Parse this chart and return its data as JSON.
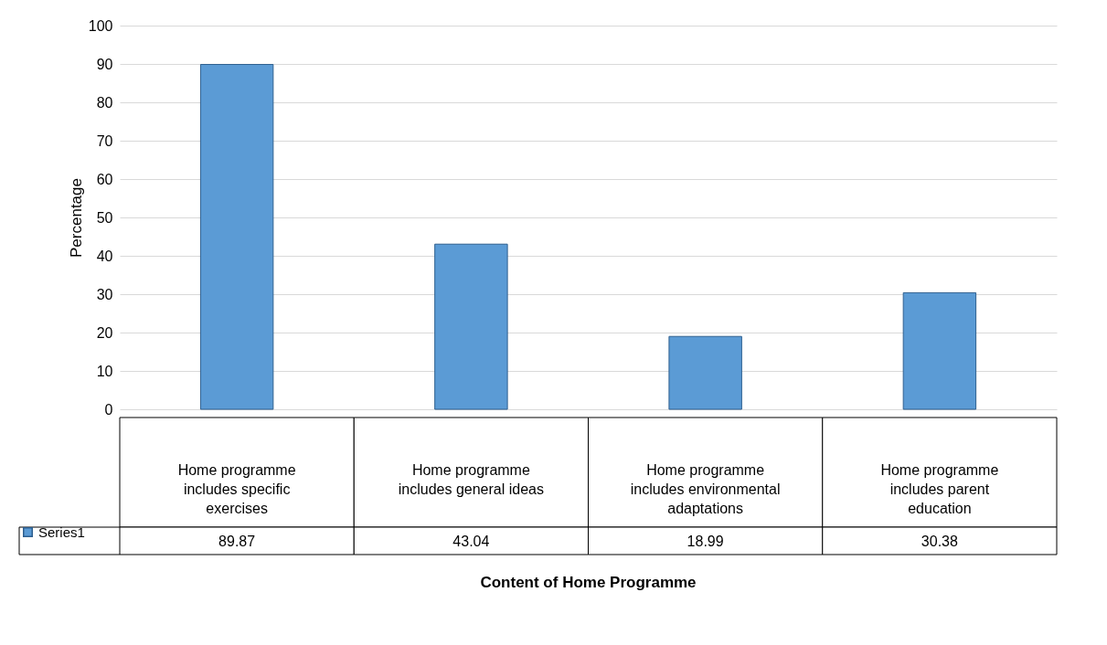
{
  "chart_data": {
    "type": "bar",
    "xlabel": "Content of Home Programme",
    "ylabel": "Percentage",
    "categories": [
      "Home programme includes specific exercises",
      "Home programme includes general ideas",
      "Home programme includes environmental adaptations",
      "Home programme includes parent education"
    ],
    "series": [
      {
        "name": "Series1",
        "color": "#5b9bd5",
        "values": [
          89.87,
          43.04,
          18.99,
          30.38
        ]
      }
    ],
    "ylim": [
      0,
      100
    ],
    "yticks": [
      0,
      10,
      20,
      30,
      40,
      50,
      60,
      70,
      80,
      90,
      100
    ],
    "grid": "y",
    "legend": "bottom left",
    "data_labels": true
  }
}
